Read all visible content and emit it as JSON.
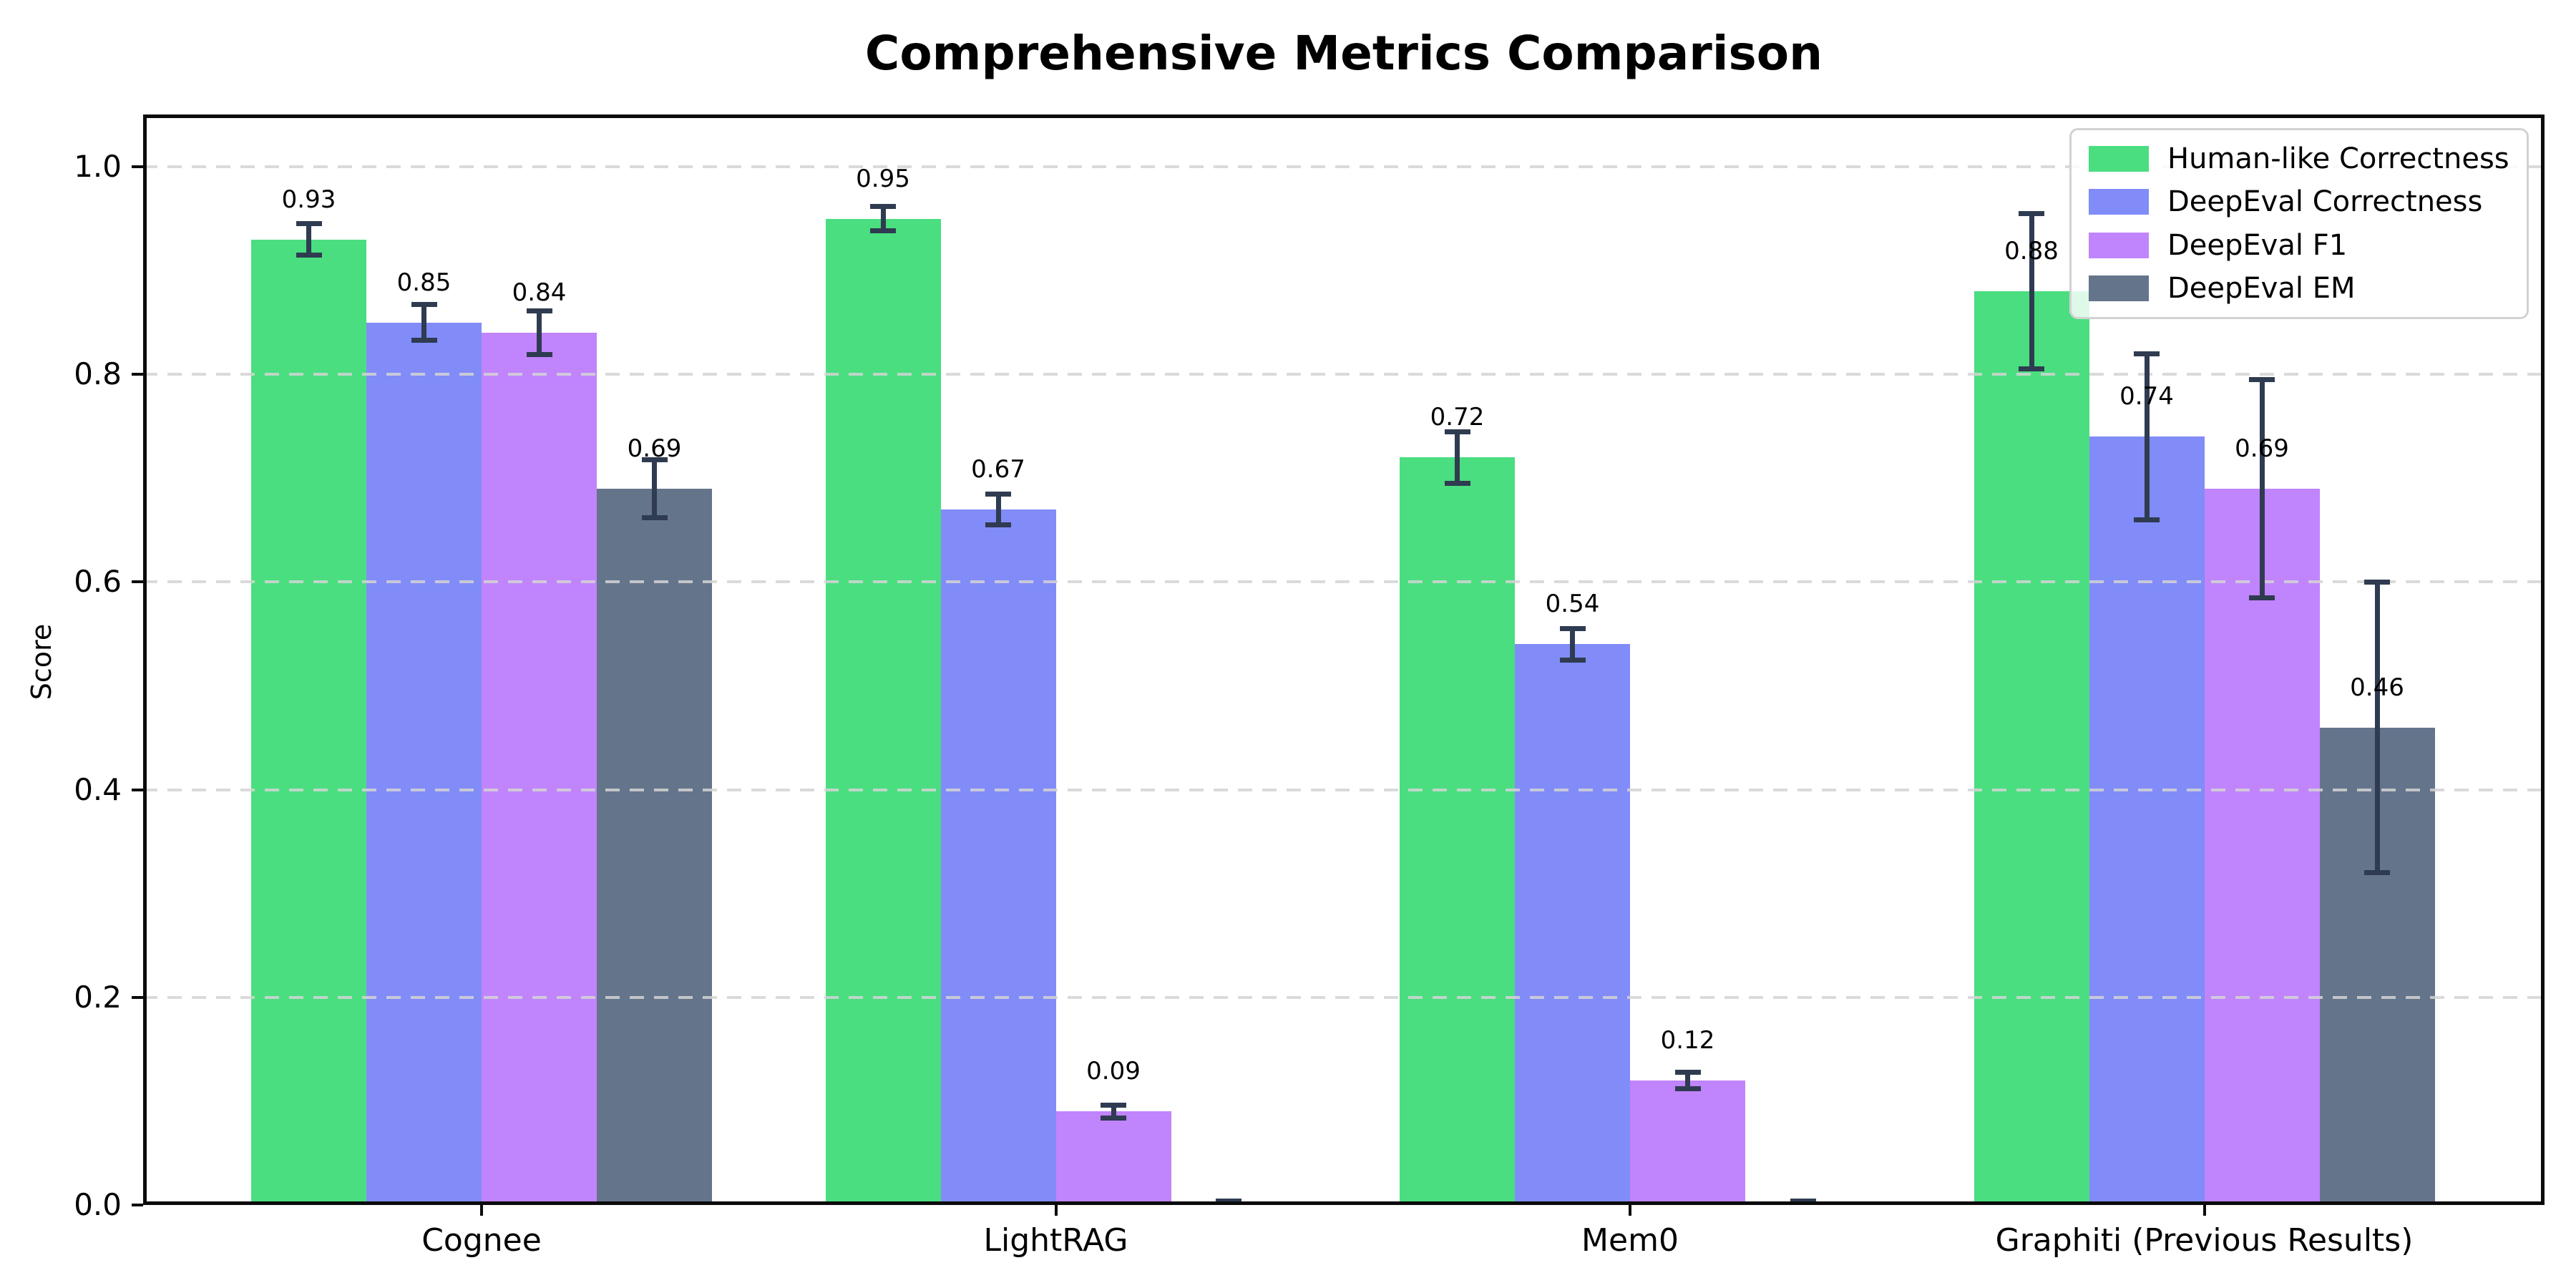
{
  "chart_data": {
    "type": "bar",
    "title": "Comprehensive Metrics Comparison",
    "ylabel": "Score",
    "categories": [
      "Cognee",
      "LightRAG",
      "Mem0",
      "Graphiti (Previous Results)"
    ],
    "series": [
      {
        "name": "Human-like Correctness",
        "color": "#4ade80",
        "values": [
          0.93,
          0.95,
          0.72,
          0.88
        ],
        "errors": [
          0.015,
          0.012,
          0.025,
          0.075
        ],
        "bar_labels": [
          "0.93",
          "0.95",
          "0.72",
          "0.88"
        ]
      },
      {
        "name": "DeepEval Correctness",
        "color": "#818cf8",
        "values": [
          0.85,
          0.67,
          0.54,
          0.74
        ],
        "errors": [
          0.017,
          0.015,
          0.015,
          0.08
        ],
        "bar_labels": [
          "0.85",
          "0.67",
          "0.54",
          "0.74"
        ]
      },
      {
        "name": "DeepEval F1",
        "color": "#c084fc",
        "values": [
          0.84,
          0.09,
          0.12,
          0.69
        ],
        "errors": [
          0.021,
          0.006,
          0.008,
          0.105
        ],
        "bar_labels": [
          "0.84",
          "0.09",
          "0.12",
          "0.69"
        ]
      },
      {
        "name": "DeepEval EM",
        "color": "#64748b",
        "values": [
          0.69,
          0.0,
          0.0,
          0.46
        ],
        "errors": [
          0.028,
          0.004,
          0.004,
          0.14
        ],
        "bar_labels": [
          "0.69",
          "",
          "",
          "0.46"
        ]
      }
    ],
    "yticks": [
      {
        "value": 0.0,
        "label": "0.0"
      },
      {
        "value": 0.2,
        "label": "0.2"
      },
      {
        "value": 0.4,
        "label": "0.4"
      },
      {
        "value": 0.6,
        "label": "0.6"
      },
      {
        "value": 0.8,
        "label": "0.8"
      },
      {
        "value": 1.0,
        "label": "1.0"
      }
    ],
    "ylim": [
      0,
      1.05
    ],
    "grid": {
      "axis": "y",
      "style": "dashed",
      "color": "#d4d4d4"
    },
    "legend": {
      "position": "upper-right",
      "entries": [
        "Human-like Correctness",
        "DeepEval Correctness",
        "DeepEval F1",
        "DeepEval EM"
      ]
    },
    "colors": {
      "error_bar": "#2f3b50",
      "axis": "#0b0b0b",
      "background": "#ffffff"
    }
  }
}
